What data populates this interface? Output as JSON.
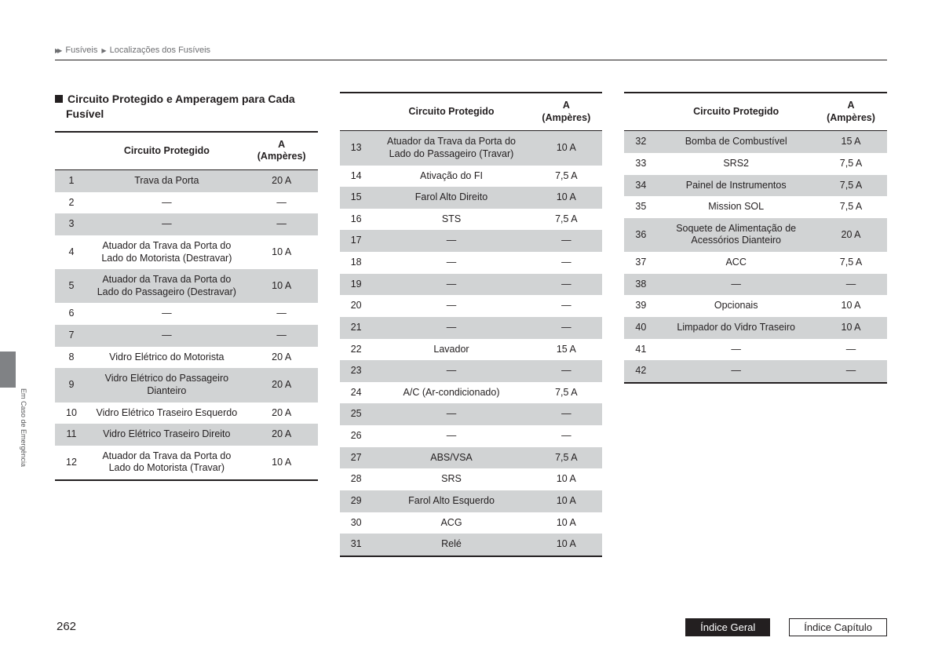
{
  "breadcrumb": {
    "part1": "Fusíveis",
    "part2": "Localizações dos Fusíveis"
  },
  "section_title": "Circuito Protegido e Amperagem para Cada Fusível",
  "table_headers": {
    "numcol": "",
    "circuit": "Circuito Protegido",
    "amp_line1": "A",
    "amp_line2": "(Ampères)"
  },
  "side_label": "Em Caso de Emergência",
  "page_number": "262",
  "footer": {
    "general": "Índice Geral",
    "chapter": "Índice Capítulo"
  },
  "colors": {
    "row_odd": "#d1d3d4",
    "row_even": "#ffffff",
    "border": "#231f20",
    "tab": "#808285"
  },
  "tables": {
    "col1": [
      {
        "n": "1",
        "desc": "Trava da Porta",
        "amp": "20 A"
      },
      {
        "n": "2",
        "desc": "—",
        "amp": "—"
      },
      {
        "n": "3",
        "desc": "—",
        "amp": "—"
      },
      {
        "n": "4",
        "desc": "Atuador da Trava da Porta do Lado do Motorista (Destravar)",
        "amp": "10 A"
      },
      {
        "n": "5",
        "desc": "Atuador da Trava da Porta do Lado do Passageiro (Destravar)",
        "amp": "10 A"
      },
      {
        "n": "6",
        "desc": "—",
        "amp": "—"
      },
      {
        "n": "7",
        "desc": "—",
        "amp": "—"
      },
      {
        "n": "8",
        "desc": "Vidro Elétrico do Motorista",
        "amp": "20 A"
      },
      {
        "n": "9",
        "desc": "Vidro Elétrico do Passageiro Dianteiro",
        "amp": "20 A"
      },
      {
        "n": "10",
        "desc": "Vidro Elétrico Traseiro Esquerdo",
        "amp": "20 A"
      },
      {
        "n": "11",
        "desc": "Vidro Elétrico Traseiro Direito",
        "amp": "20 A"
      },
      {
        "n": "12",
        "desc": "Atuador da Trava da Porta do Lado do Motorista (Travar)",
        "amp": "10 A"
      }
    ],
    "col2": [
      {
        "n": "13",
        "desc": "Atuador da Trava da Porta do Lado do Passageiro (Travar)",
        "amp": "10 A"
      },
      {
        "n": "14",
        "desc": "Ativação do FI",
        "amp": "7,5 A"
      },
      {
        "n": "15",
        "desc": "Farol Alto Direito",
        "amp": "10 A"
      },
      {
        "n": "16",
        "desc": "STS",
        "amp": "7,5 A"
      },
      {
        "n": "17",
        "desc": "—",
        "amp": "—"
      },
      {
        "n": "18",
        "desc": "—",
        "amp": "—"
      },
      {
        "n": "19",
        "desc": "—",
        "amp": "—"
      },
      {
        "n": "20",
        "desc": "—",
        "amp": "—"
      },
      {
        "n": "21",
        "desc": "—",
        "amp": "—"
      },
      {
        "n": "22",
        "desc": "Lavador",
        "amp": "15 A"
      },
      {
        "n": "23",
        "desc": "—",
        "amp": "—"
      },
      {
        "n": "24",
        "desc": "A/C (Ar-condicionado)",
        "amp": "7,5 A"
      },
      {
        "n": "25",
        "desc": "—",
        "amp": "—"
      },
      {
        "n": "26",
        "desc": "—",
        "amp": "—"
      },
      {
        "n": "27",
        "desc": "ABS/VSA",
        "amp": "7,5 A"
      },
      {
        "n": "28",
        "desc": "SRS",
        "amp": "10 A"
      },
      {
        "n": "29",
        "desc": "Farol Alto Esquerdo",
        "amp": "10 A"
      },
      {
        "n": "30",
        "desc": "ACG",
        "amp": "10 A"
      },
      {
        "n": "31",
        "desc": "Relé",
        "amp": "10 A"
      }
    ],
    "col3": [
      {
        "n": "32",
        "desc": "Bomba de Combustível",
        "amp": "15 A"
      },
      {
        "n": "33",
        "desc": "SRS2",
        "amp": "7,5 A"
      },
      {
        "n": "34",
        "desc": "Painel de Instrumentos",
        "amp": "7,5 A"
      },
      {
        "n": "35",
        "desc": "Mission SOL",
        "amp": "7,5 A"
      },
      {
        "n": "36",
        "desc": "Soquete de Alimentação de Acessórios Dianteiro",
        "amp": "20 A"
      },
      {
        "n": "37",
        "desc": "ACC",
        "amp": "7,5 A"
      },
      {
        "n": "38",
        "desc": "—",
        "amp": "—"
      },
      {
        "n": "39",
        "desc": "Opcionais",
        "amp": "10 A"
      },
      {
        "n": "40",
        "desc": "Limpador do Vidro Traseiro",
        "amp": "10 A"
      },
      {
        "n": "41",
        "desc": "—",
        "amp": "—"
      },
      {
        "n": "42",
        "desc": "—",
        "amp": "—"
      }
    ]
  }
}
